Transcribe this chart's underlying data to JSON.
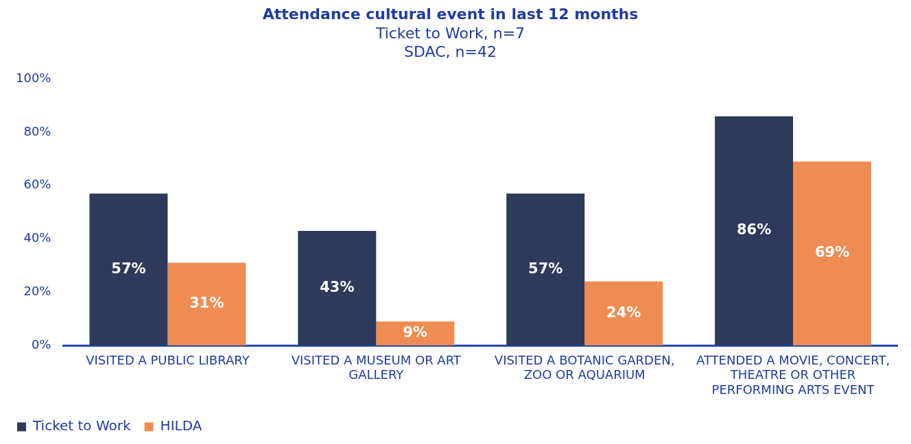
{
  "chart_data": {
    "type": "bar",
    "title": "Attendance cultural event in last 12 months",
    "subtitle": "Ticket to Work, n=7\nSDAC, n=42",
    "categories": [
      "VISITED A PUBLIC LIBRARY",
      "VISITED A MUSEUM OR ART GALLERY",
      "VISITED A BOTANIC GARDEN, ZOO OR AQUARIUM",
      "ATTENDED A MOVIE, CONCERT, THEATRE OR OTHER PERFORMING ARTS EVENT"
    ],
    "series": [
      {
        "name": "Ticket to Work",
        "color": "#2d3a5a",
        "values": [
          57,
          43,
          57,
          86
        ],
        "value_labels": [
          "57%",
          "43%",
          "57%",
          "86%"
        ]
      },
      {
        "name": "HILDA",
        "color": "#ef8c52",
        "values": [
          31,
          9,
          24,
          69
        ],
        "value_labels": [
          "31%",
          "9%",
          "24%",
          "69%"
        ]
      }
    ],
    "ylim": [
      0,
      100
    ],
    "yticks": [
      {
        "value": 0,
        "label": "0%"
      },
      {
        "value": 20,
        "label": "20%"
      },
      {
        "value": 40,
        "label": "40%"
      },
      {
        "value": 60,
        "label": "60%"
      },
      {
        "value": 80,
        "label": "80%"
      },
      {
        "value": 100,
        "label": "100%"
      }
    ],
    "grid": false,
    "legend": "bottom left"
  }
}
